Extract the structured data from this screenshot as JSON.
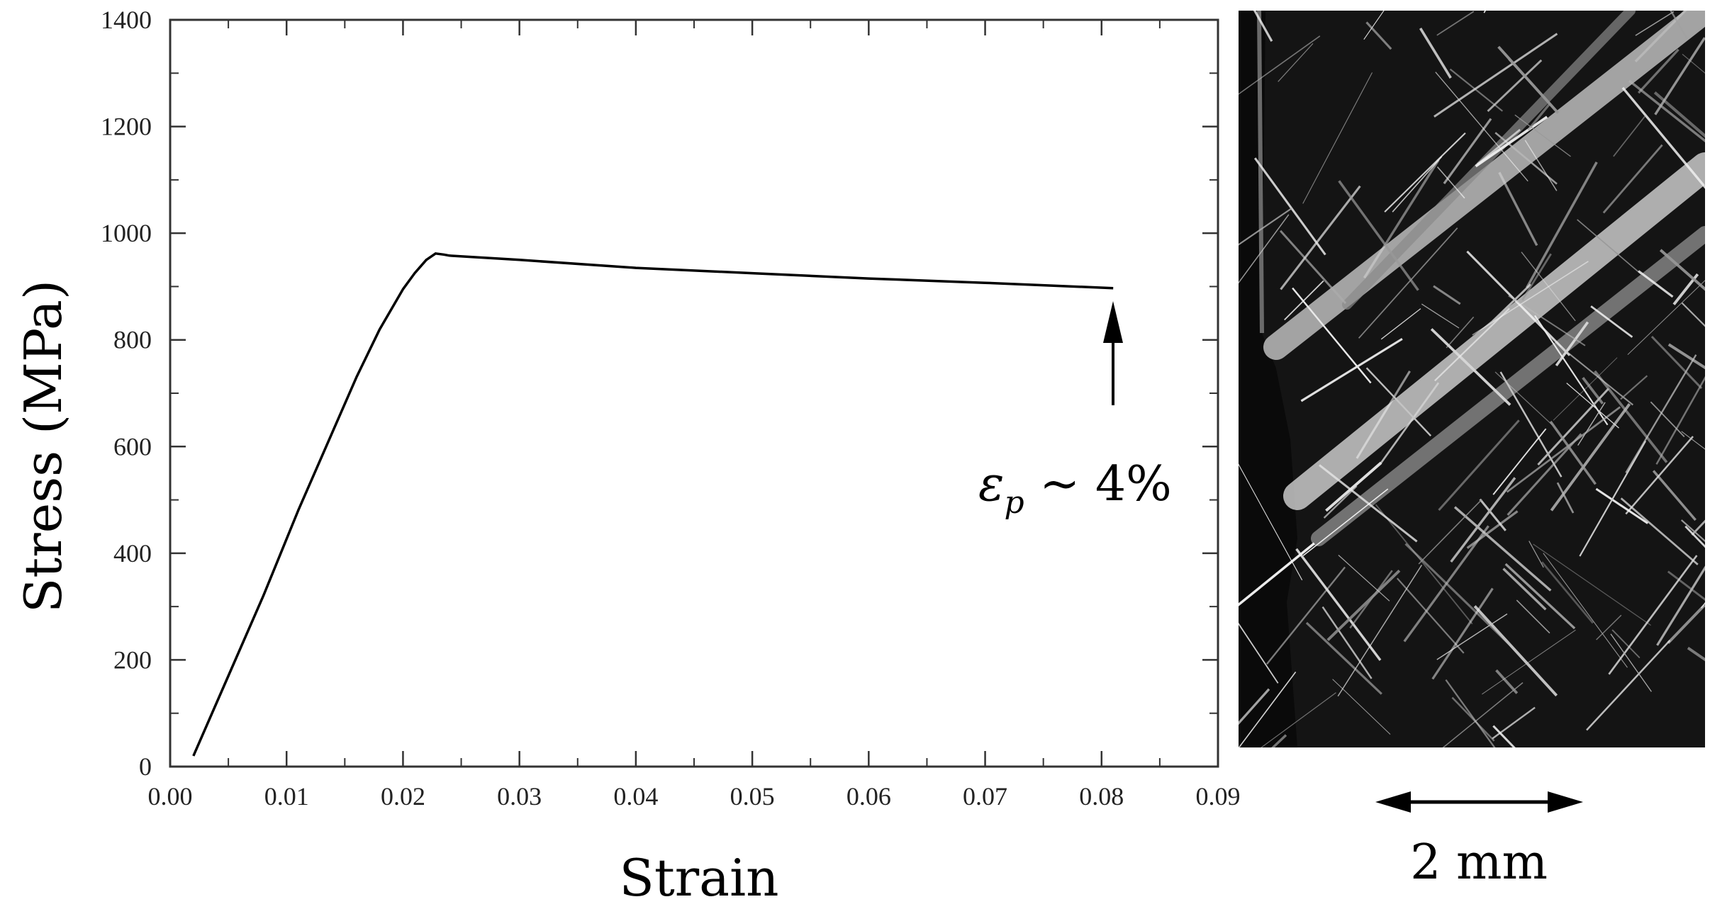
{
  "chart_data": {
    "type": "line",
    "title": "",
    "xlabel": "Strain",
    "ylabel": "Stress (MPa)",
    "xlim": [
      0.0,
      0.09
    ],
    "ylim": [
      0,
      1400
    ],
    "x_ticks": [
      "0.00",
      "0.01",
      "0.02",
      "0.03",
      "0.04",
      "0.05",
      "0.06",
      "0.07",
      "0.08",
      "0.09"
    ],
    "y_ticks": [
      "0",
      "200",
      "400",
      "600",
      "800",
      "1000",
      "1200",
      "1400"
    ],
    "grid": false,
    "series": [
      {
        "x": [
          0.002,
          0.005,
          0.008,
          0.011,
          0.014,
          0.016,
          0.018,
          0.02,
          0.021,
          0.022,
          0.0228,
          0.0235,
          0.024,
          0.03,
          0.04,
          0.05,
          0.06,
          0.07,
          0.081
        ],
        "y": [
          20,
          170,
          320,
          480,
          630,
          730,
          820,
          895,
          925,
          950,
          962,
          960,
          958,
          950,
          935,
          925,
          915,
          907,
          897
        ]
      }
    ],
    "annotations": [
      {
        "text_symbol": "ε",
        "text_subscript": "p",
        "text_rest": " ~ 4%",
        "arrow_to": [
          0.081,
          897
        ]
      }
    ]
  },
  "micrograph": {
    "scale_bar_label": "2 mm"
  },
  "colors": {
    "line": "#000000",
    "axis": "#333333",
    "micrograph_bg": "#141414",
    "micrograph_band": "#d8d8d8"
  }
}
